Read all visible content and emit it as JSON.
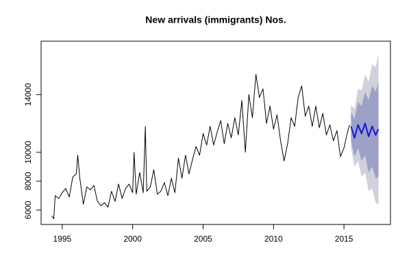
{
  "chart_data": {
    "type": "line",
    "title": "New arrivals (immigrants) Nos.",
    "xlim": [
      1993.5,
      2018.3
    ],
    "xticks": [
      1995,
      2000,
      2005,
      2010,
      2015
    ],
    "ylim": [
      5000,
      17700
    ],
    "yticks": [
      6000,
      8000,
      10000,
      14000
    ],
    "bands": [
      {
        "color": "#d1d1db",
        "x": [
          2015.5,
          2015.75,
          2016,
          2016.25,
          2016.5,
          2016.75,
          2017,
          2017.25,
          2017.45
        ],
        "lower": [
          10300,
          9000,
          9400,
          8300,
          8600,
          7300,
          7500,
          6500,
          6400
        ],
        "upper": [
          13300,
          13000,
          14400,
          14300,
          15400,
          14900,
          16100,
          15900,
          16800
        ]
      },
      {
        "color": "#9da0c7",
        "x": [
          2015.5,
          2015.75,
          2016,
          2016.25,
          2016.5,
          2016.75,
          2017,
          2017.25,
          2017.45
        ],
        "lower": [
          10800,
          9700,
          10300,
          9400,
          9800,
          8600,
          9000,
          8200,
          8300
        ],
        "upper": [
          12800,
          12300,
          13500,
          13200,
          14200,
          13600,
          14600,
          14200,
          14900
        ]
      }
    ],
    "series": [
      {
        "color": "#000000",
        "width": 1,
        "x": [
          1994.25,
          1994.4,
          1994.5,
          1994.75,
          1995,
          1995.25,
          1995.5,
          1995.75,
          1996,
          1996.1,
          1996.25,
          1996.5,
          1996.75,
          1997,
          1997.25,
          1997.5,
          1997.75,
          1998,
          1998.25,
          1998.5,
          1998.75,
          1999,
          1999.25,
          1999.5,
          1999.75,
          2000,
          2000.1,
          2000.25,
          2000.5,
          2000.75,
          2000.9,
          2001,
          2001.25,
          2001.5,
          2001.75,
          2002,
          2002.25,
          2002.5,
          2002.75,
          2003,
          2003.25,
          2003.5,
          2003.75,
          2004,
          2004.25,
          2004.5,
          2004.75,
          2005,
          2005.25,
          2005.5,
          2005.75,
          2006,
          2006.25,
          2006.5,
          2006.75,
          2007,
          2007.25,
          2007.5,
          2007.75,
          2008,
          2008.25,
          2008.5,
          2008.75,
          2009,
          2009.25,
          2009.5,
          2009.75,
          2010,
          2010.25,
          2010.5,
          2010.75,
          2011,
          2011.25,
          2011.5,
          2011.75,
          2012,
          2012.25,
          2012.5,
          2012.75,
          2013,
          2013.25,
          2013.5,
          2013.75,
          2014,
          2014.25,
          2014.5,
          2014.75,
          2015,
          2015.25,
          2015.4
        ],
        "values": [
          5600,
          5400,
          7000,
          6800,
          7200,
          7500,
          6900,
          8300,
          8500,
          9800,
          8200,
          6400,
          7600,
          7400,
          7700,
          6600,
          6300,
          6500,
          6200,
          7300,
          6600,
          7800,
          6800,
          7500,
          7800,
          7200,
          10000,
          7100,
          8600,
          7200,
          11800,
          7300,
          7600,
          8800,
          7100,
          7300,
          7900,
          7000,
          8200,
          7200,
          9600,
          8200,
          9800,
          8500,
          9500,
          10400,
          9800,
          11300,
          10500,
          11800,
          10500,
          11400,
          12200,
          10600,
          12000,
          11000,
          12400,
          11200,
          13600,
          10000,
          14000,
          12400,
          15400,
          13800,
          14400,
          12000,
          13200,
          11600,
          12600,
          10800,
          9400,
          10600,
          12400,
          11800,
          13800,
          14600,
          12500,
          13200,
          11800,
          13200,
          11700,
          12700,
          11200,
          11900,
          10800,
          11500,
          9700,
          10300,
          11400,
          11900
        ]
      },
      {
        "color": "#1515d6",
        "width": 2,
        "x": [
          2015.5,
          2015.75,
          2016,
          2016.25,
          2016.5,
          2016.75,
          2017,
          2017.25,
          2017.45
        ],
        "values": [
          11800,
          11000,
          11900,
          11300,
          12000,
          11100,
          11800,
          11200,
          11600
        ]
      }
    ]
  }
}
